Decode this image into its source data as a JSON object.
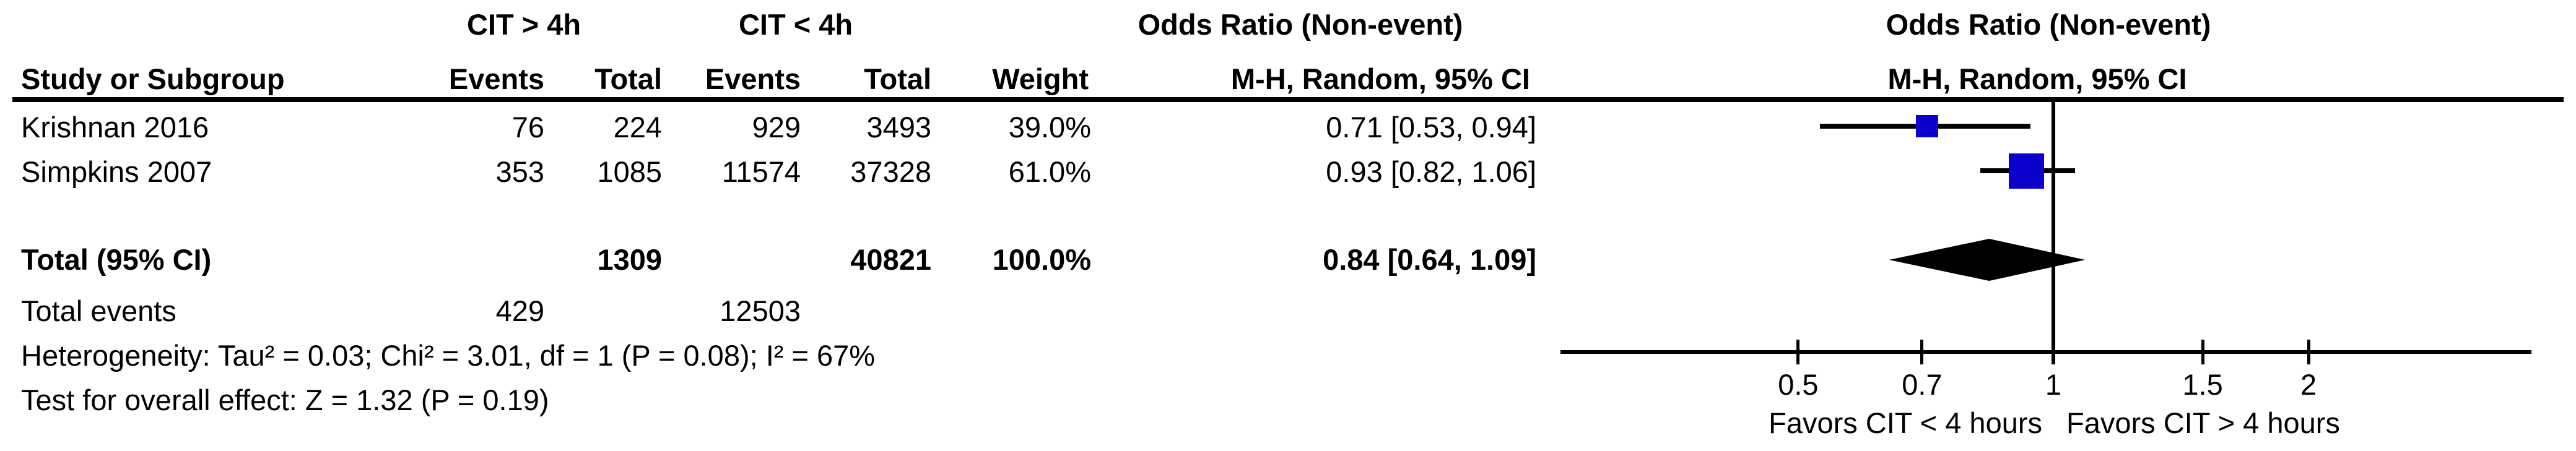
{
  "header": {
    "group1": "CIT > 4h",
    "group2": "CIT < 4h",
    "or_title": "Odds Ratio (Non-event)",
    "or_sub": "M-H, Random, 95% CI",
    "plot_title": "Odds Ratio (Non-event)",
    "plot_sub": "M-H, Random, 95% CI",
    "study_col": "Study or Subgroup",
    "events_col_1": "Events",
    "total_col_1": "Total",
    "events_col_2": "Events",
    "total_col_2": "Total",
    "weight_col": "Weight"
  },
  "rows": [
    {
      "study": "Krishnan 2016",
      "events1": "76",
      "total1": "224",
      "events2": "929",
      "total2": "3493",
      "weight": "39.0%",
      "or_ci": "0.71 [0.53, 0.94]"
    },
    {
      "study": "Simpkins 2007",
      "events1": "353",
      "total1": "1085",
      "events2": "11574",
      "total2": "37328",
      "weight": "61.0%",
      "or_ci": "0.93 [0.82, 1.06]"
    }
  ],
  "totals": {
    "label": "Total (95% CI)",
    "total1": "1309",
    "total2": "40821",
    "weight": "100.0%",
    "or_ci": "0.84 [0.64, 1.09]",
    "events_label": "Total events",
    "events1": "429",
    "events2": "12503"
  },
  "footnotes": {
    "heterogeneity": "Heterogeneity: Tau² = 0.03; Chi² = 3.01, df = 1 (P = 0.08); I² = 67%",
    "overall_effect": "Test for overall effect: Z = 1.32 (P = 0.19)"
  },
  "chart_data": {
    "type": "forest",
    "x_scale": "log",
    "effect_measure": "Odds Ratio (Non-event), M-H, Random, 95% CI",
    "studies": [
      {
        "name": "Krishnan 2016",
        "or": 0.71,
        "ci_low": 0.53,
        "ci_high": 0.94,
        "weight_pct": 39.0
      },
      {
        "name": "Simpkins 2007",
        "or": 0.93,
        "ci_low": 0.82,
        "ci_high": 1.06,
        "weight_pct": 61.0
      }
    ],
    "total": {
      "name": "Total (95% CI)",
      "or": 0.84,
      "ci_low": 0.64,
      "ci_high": 1.09,
      "weight_pct": 100.0
    },
    "null_line": 1,
    "axis_ticks": [
      0.5,
      0.7,
      1,
      1.5,
      2
    ],
    "axis_range": [
      0.26,
      3.66
    ],
    "favors_left": "Favors CIT < 4 hours",
    "favors_right": "Favors CIT > 4 hours",
    "marker_color": "#0B00CC",
    "diamond_color": "#000000"
  }
}
